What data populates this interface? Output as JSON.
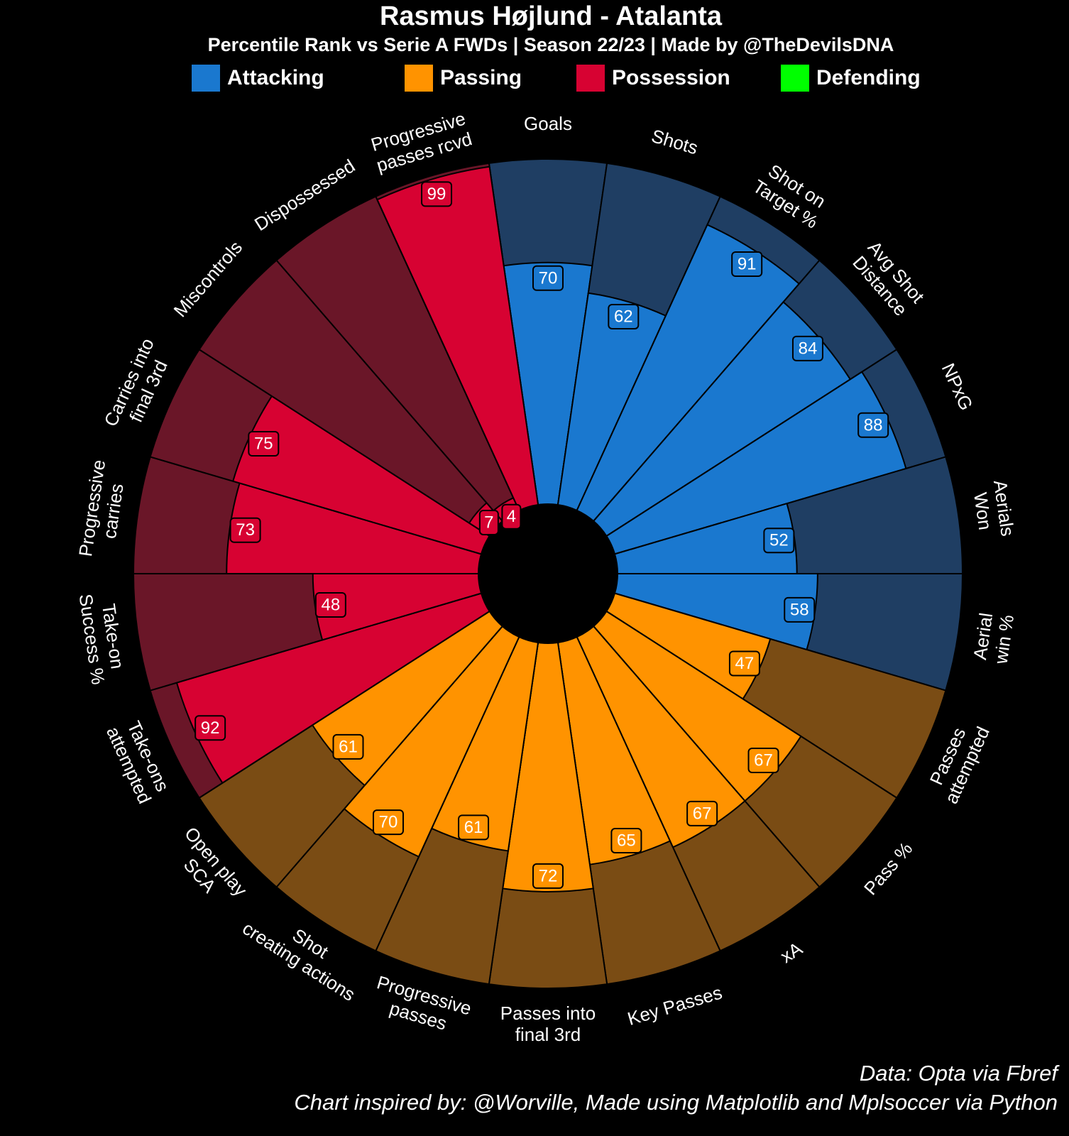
{
  "header": {
    "title": "Rasmus Højlund - Atalanta",
    "subtitle": "Percentile Rank vs Serie A FWDs | Season 22/23 | Made by @TheDevilsDNA"
  },
  "legend": [
    {
      "label": "Attacking",
      "color": "#1a78cf"
    },
    {
      "label": "Passing",
      "color": "#ff9300"
    },
    {
      "label": "Possession",
      "color": "#d70232"
    },
    {
      "label": "Defending",
      "color": "#00ff00"
    }
  ],
  "footer": {
    "line1": "Data: Opta via Fbref",
    "line2": "Chart inspired by: @Worville, Made using Matplotlib and Mplsoccer via Python"
  },
  "chart_data": {
    "type": "radial-bar",
    "value_range": [
      0,
      100
    ],
    "colors": {
      "Attacking": {
        "slice": "#1a78cf",
        "background": "#1f3e63"
      },
      "Passing": {
        "slice": "#ff9300",
        "background": "#7a4c14"
      },
      "Possession": {
        "slice": "#d70232",
        "background": "#6a1628"
      }
    },
    "params": [
      {
        "name": "Goals",
        "value": 70,
        "group": "Attacking",
        "lines": [
          "Goals"
        ]
      },
      {
        "name": "Shots",
        "value": 62,
        "group": "Attacking",
        "lines": [
          "Shots"
        ]
      },
      {
        "name": "Shot on Target %",
        "value": 91,
        "group": "Attacking",
        "lines": [
          "Shot on",
          "Target %"
        ]
      },
      {
        "name": "Avg Shot Distance",
        "value": 84,
        "group": "Attacking",
        "lines": [
          "Avg Shot",
          "Distance"
        ]
      },
      {
        "name": "NPxG",
        "value": 88,
        "group": "Attacking",
        "lines": [
          "NPxG"
        ]
      },
      {
        "name": "Aerials Won",
        "value": 52,
        "group": "Attacking",
        "lines": [
          "Aerials",
          "Won"
        ]
      },
      {
        "name": "Aerial win %",
        "value": 58,
        "group": "Attacking",
        "lines": [
          "Aerial",
          "win %"
        ]
      },
      {
        "name": "Passes attempted",
        "value": 47,
        "group": "Passing",
        "lines": [
          "Passes",
          "attempted"
        ]
      },
      {
        "name": "Pass %",
        "value": 67,
        "group": "Passing",
        "lines": [
          "Pass %"
        ]
      },
      {
        "name": "xA",
        "value": 67,
        "group": "Passing",
        "lines": [
          "xA"
        ]
      },
      {
        "name": "Key Passes",
        "value": 65,
        "group": "Passing",
        "lines": [
          "Key Passes"
        ]
      },
      {
        "name": "Passes into final 3rd",
        "value": 72,
        "group": "Passing",
        "lines": [
          "Passes into",
          "final 3rd"
        ]
      },
      {
        "name": "Progressive passes",
        "value": 61,
        "group": "Passing",
        "lines": [
          "Progressive",
          "passes"
        ]
      },
      {
        "name": "Shot creating actions",
        "value": 70,
        "group": "Passing",
        "lines": [
          "Shot",
          "creating actions"
        ]
      },
      {
        "name": "Open play SCA",
        "value": 61,
        "group": "Passing",
        "lines": [
          "Open play",
          "SCA"
        ]
      },
      {
        "name": "Take-ons attempted",
        "value": 92,
        "group": "Possession",
        "lines": [
          "Take-ons",
          "attempted"
        ]
      },
      {
        "name": "Take-on Success %",
        "value": 48,
        "group": "Possession",
        "lines": [
          "Take-on",
          "Success %"
        ]
      },
      {
        "name": "Progressive carries",
        "value": 73,
        "group": "Possession",
        "lines": [
          "Progressive",
          "carries"
        ]
      },
      {
        "name": "Carries into final 3rd",
        "value": 75,
        "group": "Possession",
        "lines": [
          "Carries into",
          "final 3rd"
        ]
      },
      {
        "name": "Miscontrols",
        "value": 7,
        "group": "Possession",
        "lines": [
          "Miscontrols"
        ]
      },
      {
        "name": "Dispossessed",
        "value": 4,
        "group": "Possession",
        "lines": [
          "Dispossessed"
        ]
      },
      {
        "name": "Progressive passes rcvd",
        "value": 99,
        "group": "Possession",
        "lines": [
          "Progressive",
          "passes rcvd"
        ]
      }
    ]
  }
}
